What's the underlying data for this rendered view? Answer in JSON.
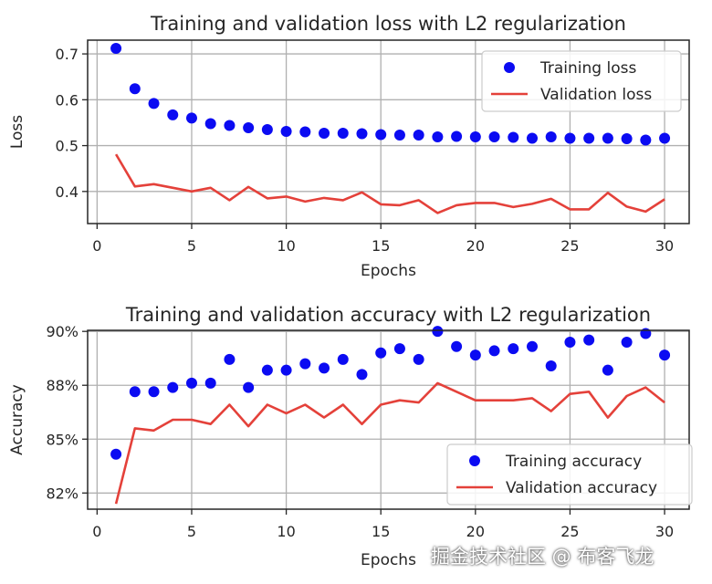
{
  "watermark": "掘金技术社区 @ 布客飞龙",
  "colors": {
    "training": "#0b0bf2",
    "validation": "#e4413a",
    "grid": "#b0b0b0",
    "axis": "#262626"
  },
  "chart_data": [
    {
      "type": "line",
      "title": "Training and validation loss with L2 regularization",
      "xlabel": "Epochs",
      "ylabel": "Loss",
      "xlim": [
        -0.5,
        31.3
      ],
      "ylim": [
        0.33,
        0.73
      ],
      "xticks": [
        0,
        5,
        10,
        15,
        20,
        25,
        30
      ],
      "yticks": [
        0.4,
        0.5,
        0.6,
        0.7
      ],
      "ytick_labels": [
        "0.4",
        "0.5",
        "0.6",
        "0.7"
      ],
      "legend_position": "top-right",
      "x": [
        1,
        2,
        3,
        4,
        5,
        6,
        7,
        8,
        9,
        10,
        11,
        12,
        13,
        14,
        15,
        16,
        17,
        18,
        19,
        20,
        21,
        22,
        23,
        24,
        25,
        26,
        27,
        28,
        29,
        30
      ],
      "series": [
        {
          "name": "Training loss",
          "style": "dots",
          "values": [
            0.712,
            0.624,
            0.592,
            0.567,
            0.56,
            0.548,
            0.544,
            0.539,
            0.535,
            0.531,
            0.53,
            0.527,
            0.527,
            0.526,
            0.524,
            0.523,
            0.523,
            0.519,
            0.52,
            0.519,
            0.519,
            0.518,
            0.516,
            0.519,
            0.516,
            0.516,
            0.516,
            0.515,
            0.512,
            0.516
          ]
        },
        {
          "name": "Validation loss",
          "style": "line",
          "values": [
            0.481,
            0.411,
            0.416,
            0.408,
            0.4,
            0.408,
            0.381,
            0.41,
            0.385,
            0.389,
            0.378,
            0.386,
            0.381,
            0.398,
            0.372,
            0.37,
            0.381,
            0.353,
            0.37,
            0.375,
            0.375,
            0.366,
            0.373,
            0.384,
            0.361,
            0.361,
            0.397,
            0.367,
            0.356,
            0.383
          ]
        }
      ]
    },
    {
      "type": "line",
      "title": "Training and validation accuracy with L2 regularization",
      "xlabel": "Epochs",
      "ylabel": "Accuracy",
      "xlim": [
        -0.5,
        31.3
      ],
      "ylim": [
        0.8175,
        0.9005
      ],
      "xticks": [
        0,
        5,
        10,
        15,
        20,
        25,
        30
      ],
      "yticks": [
        0.825,
        0.85,
        0.875,
        0.9
      ],
      "ytick_labels": [
        "82%",
        "85%",
        "88%",
        "90%"
      ],
      "legend_position": "bottom-right",
      "x": [
        1,
        2,
        3,
        4,
        5,
        6,
        7,
        8,
        9,
        10,
        11,
        12,
        13,
        14,
        15,
        16,
        17,
        18,
        19,
        20,
        21,
        22,
        23,
        24,
        25,
        26,
        27,
        28,
        29,
        30
      ],
      "series": [
        {
          "name": "Training accuracy",
          "style": "dots",
          "values": [
            0.843,
            0.872,
            0.872,
            0.874,
            0.876,
            0.876,
            0.887,
            0.874,
            0.882,
            0.882,
            0.885,
            0.883,
            0.887,
            0.88,
            0.89,
            0.892,
            0.887,
            0.9,
            0.893,
            0.889,
            0.891,
            0.892,
            0.893,
            0.884,
            0.895,
            0.896,
            0.882,
            0.895,
            0.899,
            0.889
          ]
        },
        {
          "name": "Validation accuracy",
          "style": "line",
          "values": [
            0.82,
            0.855,
            0.854,
            0.859,
            0.859,
            0.857,
            0.866,
            0.856,
            0.866,
            0.862,
            0.866,
            0.86,
            0.866,
            0.857,
            0.866,
            0.868,
            0.867,
            0.876,
            0.872,
            0.868,
            0.868,
            0.868,
            0.869,
            0.863,
            0.871,
            0.872,
            0.86,
            0.87,
            0.874,
            0.867
          ]
        }
      ]
    }
  ]
}
